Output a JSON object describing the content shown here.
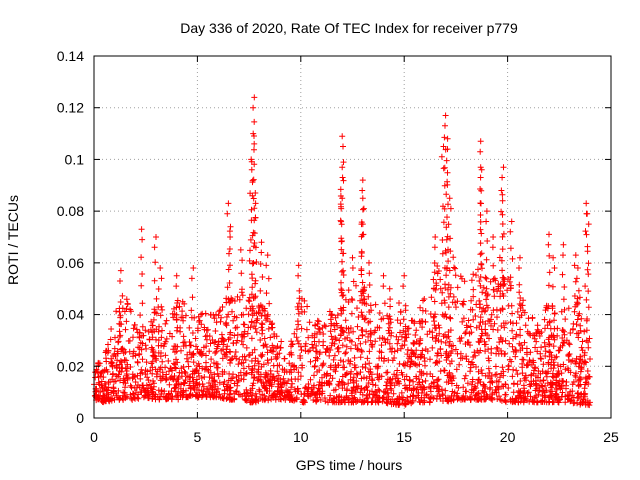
{
  "chart_data": {
    "type": "scatter",
    "title": "Day 336 of 2020, Rate Of TEC Index for receiver p779",
    "xlabel": "GPS time / hours",
    "ylabel": "ROTI / TECUs",
    "xlim": [
      0,
      25
    ],
    "ylim": [
      0,
      0.14
    ],
    "xticks": [
      0,
      5,
      10,
      15,
      20,
      25
    ],
    "xtick_labels": [
      "0",
      "5",
      "10",
      "15",
      "20",
      "25"
    ],
    "yticks": [
      0,
      0.02,
      0.04,
      0.06,
      0.08,
      0.1,
      0.12,
      0.14
    ],
    "ytick_labels": [
      "0",
      "0.02",
      "0.04",
      "0.06",
      "0.08",
      "0.1",
      "0.12",
      "0.14"
    ],
    "grid": true,
    "marker": "+",
    "marker_color": "#ff0000",
    "series": [
      {
        "name": "ROTI",
        "envelope": {
          "x": [
            0,
            0.5,
            1.0,
            1.5,
            2.0,
            2.5,
            3.0,
            3.5,
            4.0,
            4.5,
            5.0,
            5.5,
            6.0,
            6.5,
            7.0,
            7.5,
            8.0,
            8.5,
            9.0,
            9.5,
            10.0,
            10.5,
            11.0,
            11.5,
            12.0,
            12.5,
            13.0,
            13.5,
            14.0,
            14.5,
            15.0,
            15.5,
            16.0,
            16.5,
            17.0,
            17.5,
            18.0,
            18.5,
            19.0,
            19.5,
            20.0,
            20.5,
            21.0,
            21.5,
            22.0,
            22.5,
            23.0,
            23.5,
            24.0
          ],
          "low": [
            0.007,
            0.006,
            0.007,
            0.007,
            0.007,
            0.008,
            0.007,
            0.007,
            0.007,
            0.008,
            0.008,
            0.008,
            0.008,
            0.007,
            0.007,
            0.006,
            0.006,
            0.007,
            0.007,
            0.007,
            0.006,
            0.006,
            0.006,
            0.006,
            0.006,
            0.006,
            0.006,
            0.006,
            0.006,
            0.005,
            0.005,
            0.006,
            0.006,
            0.006,
            0.006,
            0.007,
            0.007,
            0.007,
            0.007,
            0.007,
            0.006,
            0.006,
            0.006,
            0.006,
            0.006,
            0.006,
            0.006,
            0.005,
            0.005
          ],
          "high": [
            0.022,
            0.024,
            0.04,
            0.05,
            0.038,
            0.034,
            0.045,
            0.04,
            0.045,
            0.045,
            0.04,
            0.042,
            0.044,
            0.048,
            0.048,
            0.05,
            0.045,
            0.04,
            0.03,
            0.028,
            0.052,
            0.04,
            0.038,
            0.042,
            0.05,
            0.052,
            0.05,
            0.045,
            0.042,
            0.044,
            0.046,
            0.04,
            0.048,
            0.058,
            0.07,
            0.06,
            0.055,
            0.06,
            0.06,
            0.055,
            0.055,
            0.05,
            0.042,
            0.04,
            0.045,
            0.04,
            0.045,
            0.048,
            0.03
          ]
        },
        "spikes": [
          {
            "x": 1.3,
            "y": 0.057
          },
          {
            "x": 2.3,
            "y": 0.073
          },
          {
            "x": 3.0,
            "y": 0.07
          },
          {
            "x": 3.2,
            "y": 0.058
          },
          {
            "x": 4.0,
            "y": 0.055
          },
          {
            "x": 4.8,
            "y": 0.058
          },
          {
            "x": 6.5,
            "y": 0.083
          },
          {
            "x": 6.6,
            "y": 0.074
          },
          {
            "x": 7.1,
            "y": 0.065
          },
          {
            "x": 7.6,
            "y": 0.1
          },
          {
            "x": 7.7,
            "y": 0.11
          },
          {
            "x": 7.75,
            "y": 0.124
          },
          {
            "x": 7.8,
            "y": 0.087
          },
          {
            "x": 8.1,
            "y": 0.068
          },
          {
            "x": 8.4,
            "y": 0.063
          },
          {
            "x": 9.9,
            "y": 0.059
          },
          {
            "x": 12.0,
            "y": 0.109
          },
          {
            "x": 12.0,
            "y": 0.097
          },
          {
            "x": 12.0,
            "y": 0.085
          },
          {
            "x": 12.5,
            "y": 0.062
          },
          {
            "x": 13.0,
            "y": 0.092
          },
          {
            "x": 13.0,
            "y": 0.085
          },
          {
            "x": 13.0,
            "y": 0.075
          },
          {
            "x": 13.3,
            "y": 0.06
          },
          {
            "x": 14.0,
            "y": 0.055
          },
          {
            "x": 14.3,
            "y": 0.05
          },
          {
            "x": 15.0,
            "y": 0.055
          },
          {
            "x": 16.5,
            "y": 0.07
          },
          {
            "x": 16.9,
            "y": 0.105
          },
          {
            "x": 17.0,
            "y": 0.117
          },
          {
            "x": 17.1,
            "y": 0.108
          },
          {
            "x": 17.2,
            "y": 0.085
          },
          {
            "x": 18.7,
            "y": 0.107
          },
          {
            "x": 18.7,
            "y": 0.097
          },
          {
            "x": 19.0,
            "y": 0.08
          },
          {
            "x": 19.3,
            "y": 0.07
          },
          {
            "x": 19.7,
            "y": 0.088
          },
          {
            "x": 19.8,
            "y": 0.097
          },
          {
            "x": 20.2,
            "y": 0.076
          },
          {
            "x": 20.6,
            "y": 0.062
          },
          {
            "x": 22.0,
            "y": 0.071
          },
          {
            "x": 22.2,
            "y": 0.062
          },
          {
            "x": 22.7,
            "y": 0.067
          },
          {
            "x": 23.3,
            "y": 0.063
          },
          {
            "x": 23.4,
            "y": 0.058
          },
          {
            "x": 23.8,
            "y": 0.083
          },
          {
            "x": 23.85,
            "y": 0.079
          }
        ]
      }
    ]
  }
}
